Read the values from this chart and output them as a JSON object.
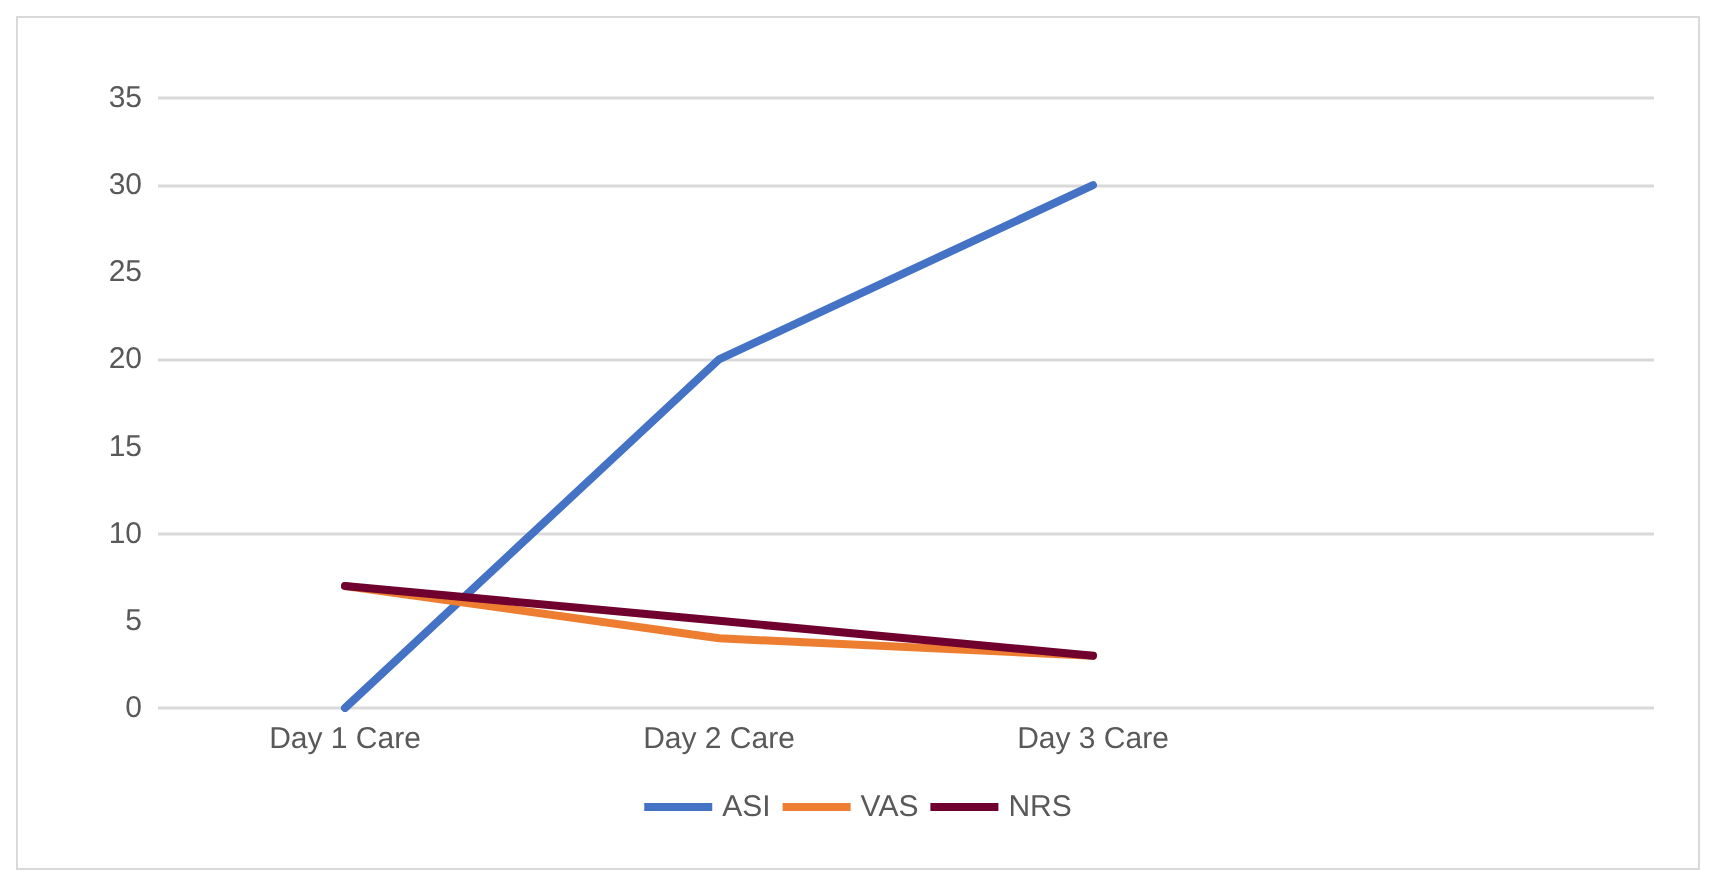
{
  "chart_data": {
    "type": "line",
    "categories": [
      "Day 1 Care",
      "Day 2 Care",
      "Day 3 Care",
      null
    ],
    "series": [
      {
        "name": "ASI",
        "color": "#4472c4",
        "values": [
          0,
          20,
          30,
          null
        ]
      },
      {
        "name": "VAS",
        "color": "#ed7d31",
        "values": [
          7,
          4,
          3,
          null
        ]
      },
      {
        "name": "NRS",
        "color": "#70002e",
        "values": [
          7,
          5,
          3,
          null
        ]
      }
    ],
    "ylim": [
      0,
      35
    ],
    "yticks": [
      0,
      5,
      10,
      15,
      20,
      25,
      30,
      35
    ],
    "grid": "y",
    "legend": "bottom",
    "marker": "none"
  }
}
